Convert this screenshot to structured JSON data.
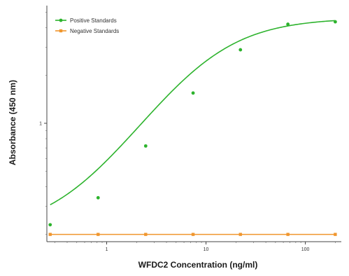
{
  "chart_data": {
    "type": "scatter",
    "title": "",
    "xlabel": "WFDC2 Concentration (ng/ml)",
    "ylabel": "Absorbance (450 nm)",
    "x_scale": "log",
    "y_scale": "log",
    "xlim": [
      0.25,
      230
    ],
    "ylim": [
      0.18,
      5.5
    ],
    "x_ticks": [
      1,
      10,
      100
    ],
    "x_tick_labels": [
      "1",
      "10",
      "100"
    ],
    "y_ticks": [
      1
    ],
    "y_tick_labels": [
      "1"
    ],
    "grid": false,
    "legend_position": "top-left",
    "series": [
      {
        "name": "Positive Standards",
        "color": "#2db32d",
        "marker": "circle",
        "fit": "four-parameter logistic curve",
        "x": [
          0.27,
          0.82,
          2.47,
          7.41,
          22.2,
          66.7,
          200
        ],
        "y": [
          0.23,
          0.34,
          0.72,
          1.55,
          2.9,
          4.2,
          4.35
        ]
      },
      {
        "name": "Negative Standards",
        "color": "#f0962d",
        "marker": "square",
        "fit": "flat line",
        "x": [
          0.27,
          0.82,
          2.47,
          7.41,
          22.2,
          66.7,
          200
        ],
        "y": [
          0.2,
          0.2,
          0.2,
          0.2,
          0.2,
          0.2,
          0.2
        ]
      }
    ]
  }
}
